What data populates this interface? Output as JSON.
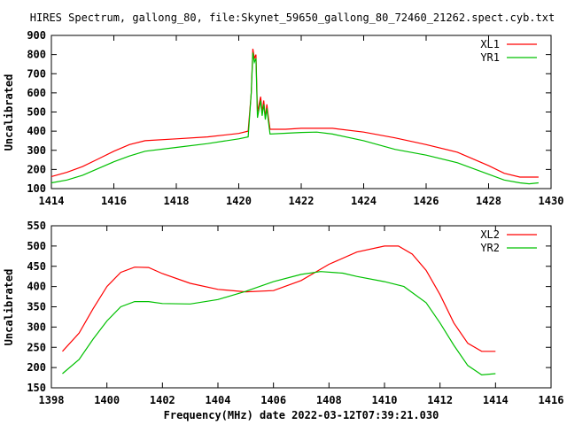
{
  "title": "HIRES Spectrum, gallong_80, file:Skynet_59650_gallong_80_72460_21262.spect.cyb.txt",
  "colors": {
    "red": "#ff0000",
    "green": "#00c000"
  },
  "chart_data": [
    {
      "type": "line",
      "xlabel": "",
      "ylabel": "Uncalibrated",
      "xlim": [
        1414,
        1430
      ],
      "ylim": [
        100,
        900
      ],
      "xticks": [
        "1414",
        "1416",
        "1418",
        "1420",
        "1422",
        "1424",
        "1426",
        "1428",
        "1430"
      ],
      "yticks": [
        "100",
        "200",
        "300",
        "400",
        "500",
        "600",
        "700",
        "800",
        "900"
      ],
      "grid": false,
      "legend": "top-right",
      "series": [
        {
          "name": "XL1",
          "color": "#ff0000",
          "x": [
            1414,
            1414.5,
            1415,
            1415.5,
            1416,
            1416.5,
            1417,
            1418,
            1419,
            1420,
            1420.3,
            1420.4,
            1420.45,
            1420.5,
            1420.55,
            1420.6,
            1420.7,
            1420.75,
            1420.8,
            1420.85,
            1420.9,
            1420.95,
            1421,
            1421.5,
            1422,
            1423,
            1424,
            1425,
            1426,
            1427,
            1428,
            1428.5,
            1429,
            1429.6
          ],
          "y": [
            163,
            185,
            215,
            255,
            295,
            330,
            350,
            360,
            370,
            388,
            400,
            600,
            830,
            780,
            800,
            500,
            580,
            500,
            560,
            470,
            540,
            470,
            410,
            410,
            415,
            415,
            395,
            365,
            330,
            290,
            220,
            180,
            160,
            160
          ]
        },
        {
          "name": "YR1",
          "color": "#00c000",
          "x": [
            1414,
            1414.5,
            1415,
            1415.5,
            1416,
            1416.5,
            1417,
            1418,
            1419,
            1420,
            1420.3,
            1420.4,
            1420.45,
            1420.5,
            1420.55,
            1420.6,
            1420.7,
            1420.75,
            1420.8,
            1420.85,
            1420.9,
            1420.95,
            1421,
            1422,
            1422.5,
            1423,
            1424,
            1425,
            1426,
            1427,
            1428,
            1428.5,
            1429,
            1429.3,
            1429.6
          ],
          "y": [
            130,
            145,
            170,
            205,
            240,
            270,
            295,
            315,
            335,
            360,
            370,
            600,
            810,
            760,
            780,
            470,
            560,
            480,
            540,
            460,
            520,
            450,
            385,
            393,
            395,
            385,
            350,
            305,
            275,
            235,
            175,
            145,
            130,
            125,
            130
          ]
        }
      ]
    },
    {
      "type": "line",
      "xlabel": "Frequency(MHz) date 2022-03-12T07:39:21.030",
      "ylabel": "Uncalibrated",
      "xlim": [
        1398,
        1416
      ],
      "ylim": [
        150,
        550
      ],
      "xticks": [
        "1398",
        "1400",
        "1402",
        "1404",
        "1406",
        "1408",
        "1410",
        "1412",
        "1414",
        "1416"
      ],
      "yticks": [
        "150",
        "200",
        "250",
        "300",
        "350",
        "400",
        "450",
        "500",
        "550"
      ],
      "grid": false,
      "legend": "top-right",
      "series": [
        {
          "name": "XL2",
          "color": "#ff0000",
          "x": [
            1398.4,
            1399,
            1399.5,
            1400,
            1400.5,
            1401,
            1401.5,
            1402,
            1403,
            1404,
            1405,
            1406,
            1407,
            1408,
            1409,
            1410,
            1410.5,
            1411,
            1411.5,
            1412,
            1412.5,
            1413,
            1413.5,
            1414
          ],
          "y": [
            240,
            285,
            345,
            400,
            435,
            448,
            447,
            432,
            408,
            393,
            387,
            390,
            415,
            455,
            485,
            500,
            500,
            480,
            440,
            380,
            310,
            260,
            240,
            240
          ]
        },
        {
          "name": "YR2",
          "color": "#00c000",
          "x": [
            1398.4,
            1399,
            1399.5,
            1400,
            1400.5,
            1401,
            1401.5,
            1402,
            1403,
            1404,
            1405,
            1406,
            1407,
            1407.7,
            1408.5,
            1409,
            1410,
            1410.7,
            1411.5,
            1412,
            1412.5,
            1413,
            1413.5,
            1414
          ],
          "y": [
            185,
            220,
            270,
            315,
            350,
            363,
            363,
            358,
            357,
            368,
            388,
            412,
            430,
            437,
            433,
            425,
            412,
            400,
            360,
            310,
            255,
            205,
            182,
            185
          ]
        }
      ]
    }
  ]
}
